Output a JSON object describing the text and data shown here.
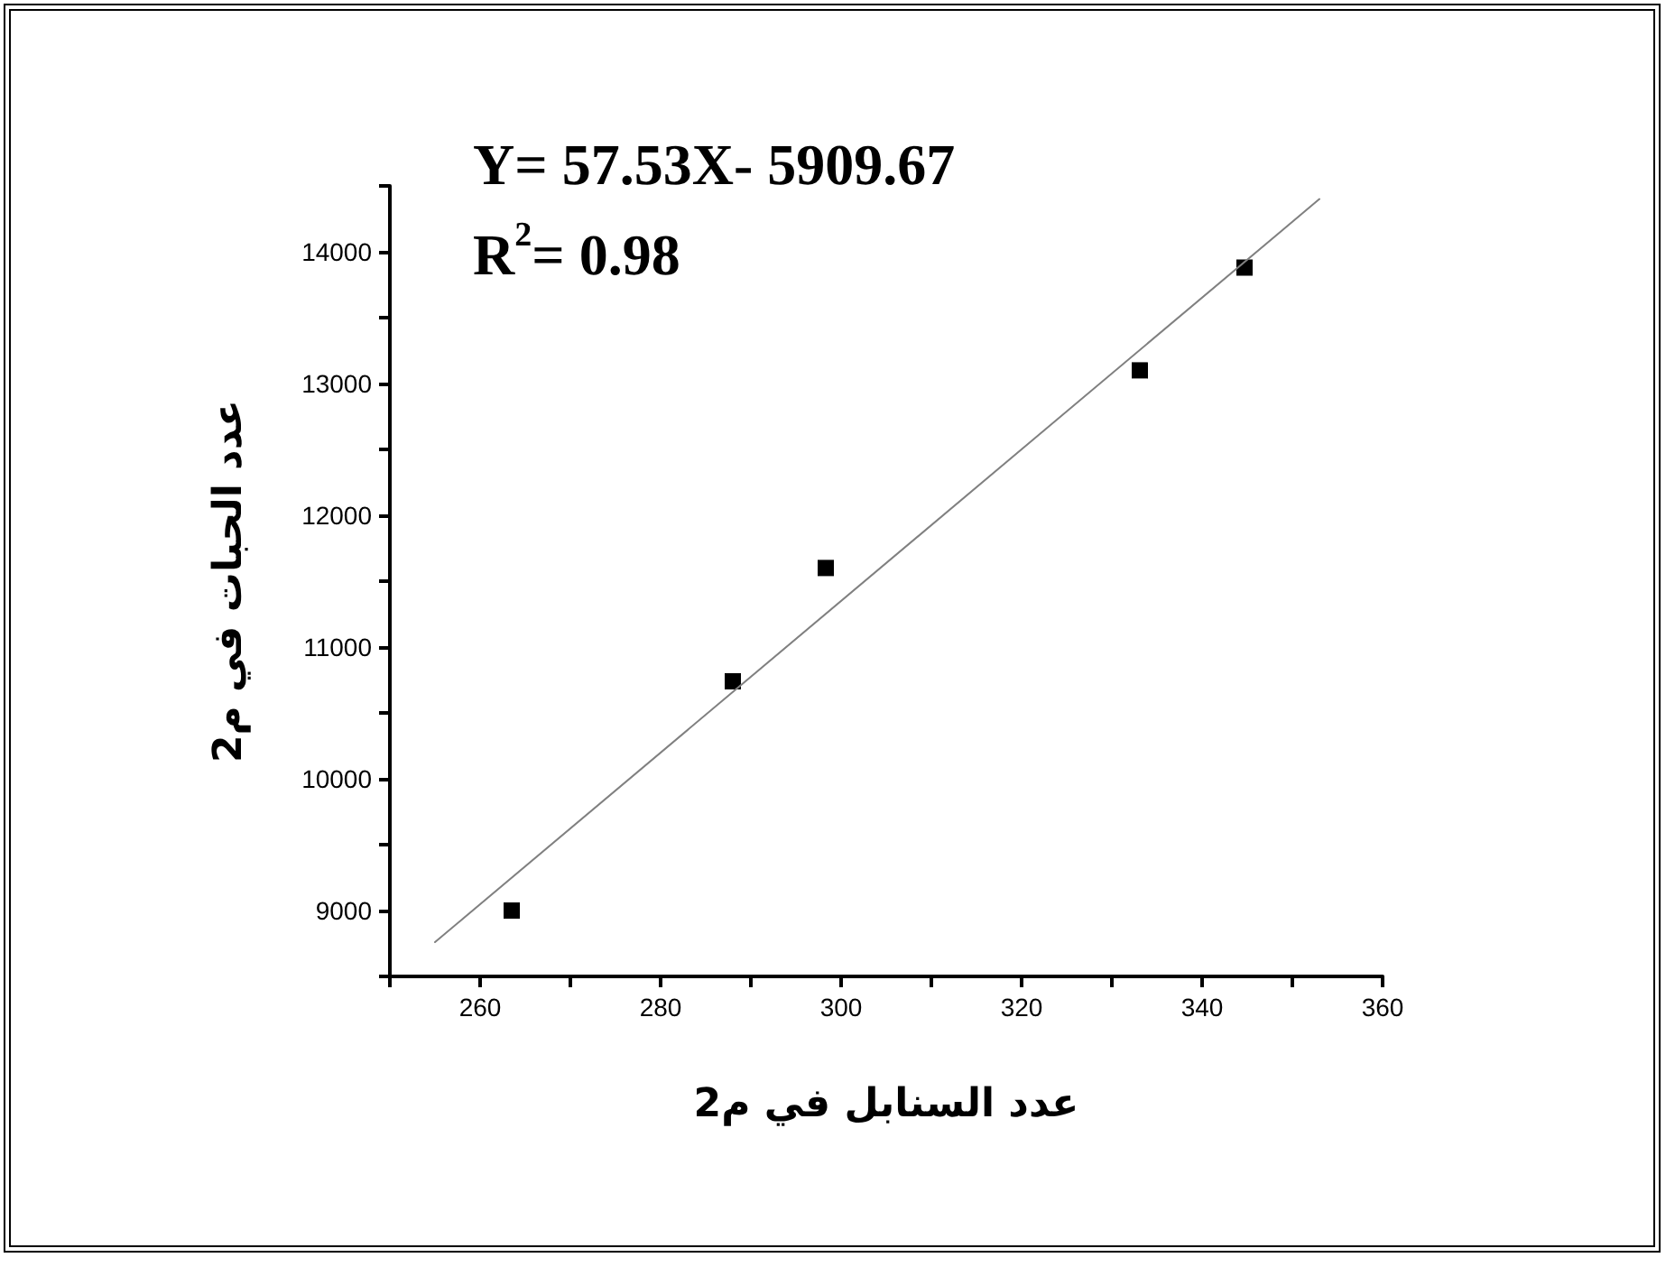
{
  "chart_data": {
    "type": "scatter",
    "xlabel": "عدد السنابل في م2",
    "ylabel": "عدد الحبات في م2",
    "annotations": [
      "Y= 57.53X- 5909.67",
      "R$^{2}$= 0.98"
    ],
    "xlim": [
      250,
      360
    ],
    "xticks": [
      {
        "value": 250,
        "label": null
      },
      260,
      {
        "value": 270,
        "label": null
      },
      280,
      {
        "value": 290,
        "label": null
      },
      300,
      {
        "value": 310,
        "label": null
      },
      320,
      {
        "value": 330,
        "label": null
      },
      340,
      {
        "value": 350,
        "label": null
      },
      360
    ],
    "ylim": [
      8500,
      14500
    ],
    "yticks": [
      {
        "value": 8500,
        "label": null
      },
      9000,
      {
        "value": 9500,
        "label": null
      },
      10000,
      {
        "value": 10500,
        "label": null
      },
      11000,
      {
        "value": 11500,
        "label": null
      },
      12000,
      {
        "value": 12500,
        "label": null
      },
      13000,
      {
        "value": 13500,
        "label": null
      },
      14000,
      {
        "value": 14500,
        "label": null
      }
    ],
    "grid": false,
    "series": [
      {
        "color": "#000000",
        "marker": "square",
        "x": [
          263.5,
          288,
          298.3,
          333.1,
          344.7
        ],
        "values": [
          9000,
          10740,
          11600,
          13100,
          13880
        ]
      },
      {
        "type": "line",
        "color": "#808080",
        "marker": "none",
        "line_style": "solid",
        "x": [
          255,
          353
        ],
        "values": [
          8760,
          14400
        ]
      }
    ]
  }
}
